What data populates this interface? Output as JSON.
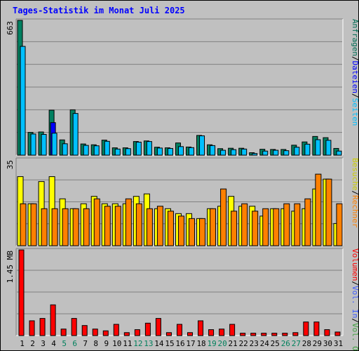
{
  "title": "Tages-Statistik im Monat Juli 2025",
  "chart_data": [
    {
      "type": "bar",
      "panel": "hits",
      "scale_label": "663",
      "ylim": [
        0,
        663
      ],
      "side_labels": [
        {
          "text": "Anfragen",
          "color": "#006c54"
        },
        {
          "text": "Dateien",
          "color": "#0000ff"
        },
        {
          "text": "Seiten",
          "color": "#00c0ff"
        }
      ],
      "series": [
        {
          "name": "Anfragen",
          "color": "#008060",
          "values": [
            663,
            112,
            114,
            221,
            75,
            223,
            55,
            51,
            74,
            36,
            36,
            67,
            70,
            39,
            36,
            60,
            40,
            97,
            51,
            32,
            34,
            34,
            12,
            29,
            28,
            28,
            49,
            65,
            92,
            86,
            33
          ]
        },
        {
          "name": "Dateien",
          "color": "#0000ff",
          "values": [
            0,
            0,
            0,
            160,
            0,
            0,
            0,
            0,
            0,
            0,
            0,
            0,
            0,
            0,
            0,
            0,
            0,
            0,
            0,
            0,
            0,
            0,
            0,
            0,
            0,
            0,
            0,
            0,
            0,
            0,
            0
          ]
        },
        {
          "name": "Seiten",
          "color": "#00c0ff",
          "values": [
            535,
            104,
            102,
            108,
            56,
            205,
            48,
            46,
            68,
            30,
            32,
            64,
            67,
            35,
            33,
            42,
            37,
            95,
            47,
            24,
            27,
            30,
            8,
            20,
            24,
            22,
            39,
            54,
            76,
            73,
            20
          ]
        }
      ]
    },
    {
      "type": "bar",
      "panel": "visits",
      "scale_label": "35",
      "ylim": [
        0,
        35
      ],
      "side_labels": [
        {
          "text": "Besuche",
          "color": "#cccc00"
        },
        {
          "text": "Rechner",
          "color": "#ff8000"
        }
      ],
      "series": [
        {
          "name": "Besuche",
          "color": "#ffff00",
          "values": [
            28,
            17,
            26,
            28,
            19,
            15,
            17,
            20,
            17,
            17,
            17,
            20,
            21,
            15,
            15,
            13,
            13,
            11,
            15,
            16,
            20,
            16,
            16,
            12,
            15,
            15,
            14,
            15,
            23,
            27,
            9
          ]
        },
        {
          "name": "Rechner",
          "color": "#ff8000",
          "values": [
            17,
            17,
            15,
            15,
            15,
            15,
            15,
            19,
            16,
            16,
            19,
            17,
            15,
            16,
            14,
            12,
            11,
            11,
            15,
            23,
            14,
            17,
            14,
            15,
            15,
            17,
            17,
            19,
            29,
            27,
            17
          ]
        }
      ]
    },
    {
      "type": "bar",
      "panel": "volume",
      "scale_label": "1.45 MB",
      "ylim": [
        0,
        1.45
      ],
      "side_labels": [
        {
          "text": "Volumen",
          "color": "#ff0000"
        },
        {
          "text": "Vol. In",
          "color": "#3c5aff"
        },
        {
          "text": "Vol. Out",
          "color": "#40a040"
        }
      ],
      "series": [
        {
          "name": "Volumen",
          "color": "#ff0000",
          "values": [
            1.45,
            0.25,
            0.29,
            0.52,
            0.11,
            0.29,
            0.17,
            0.11,
            0.08,
            0.19,
            0.05,
            0.1,
            0.21,
            0.29,
            0.05,
            0.19,
            0.05,
            0.25,
            0.1,
            0.11,
            0.19,
            0.04,
            0.04,
            0.04,
            0.04,
            0.04,
            0.05,
            0.23,
            0.23,
            0.1,
            0.06
          ]
        }
      ]
    }
  ],
  "x_days": [
    "1",
    "2",
    "3",
    "4",
    "5",
    "6",
    "7",
    "8",
    "9",
    "10",
    "11",
    "12",
    "13",
    "14",
    "15",
    "16",
    "17",
    "18",
    "19",
    "20",
    "21",
    "22",
    "23",
    "24",
    "25",
    "26",
    "27",
    "28",
    "29",
    "30",
    "31"
  ],
  "weekend_days": [
    "5",
    "6",
    "12",
    "13",
    "19",
    "20",
    "26",
    "27"
  ],
  "day_colors": {
    "weekday": "#000000",
    "weekend": "#00805c"
  }
}
